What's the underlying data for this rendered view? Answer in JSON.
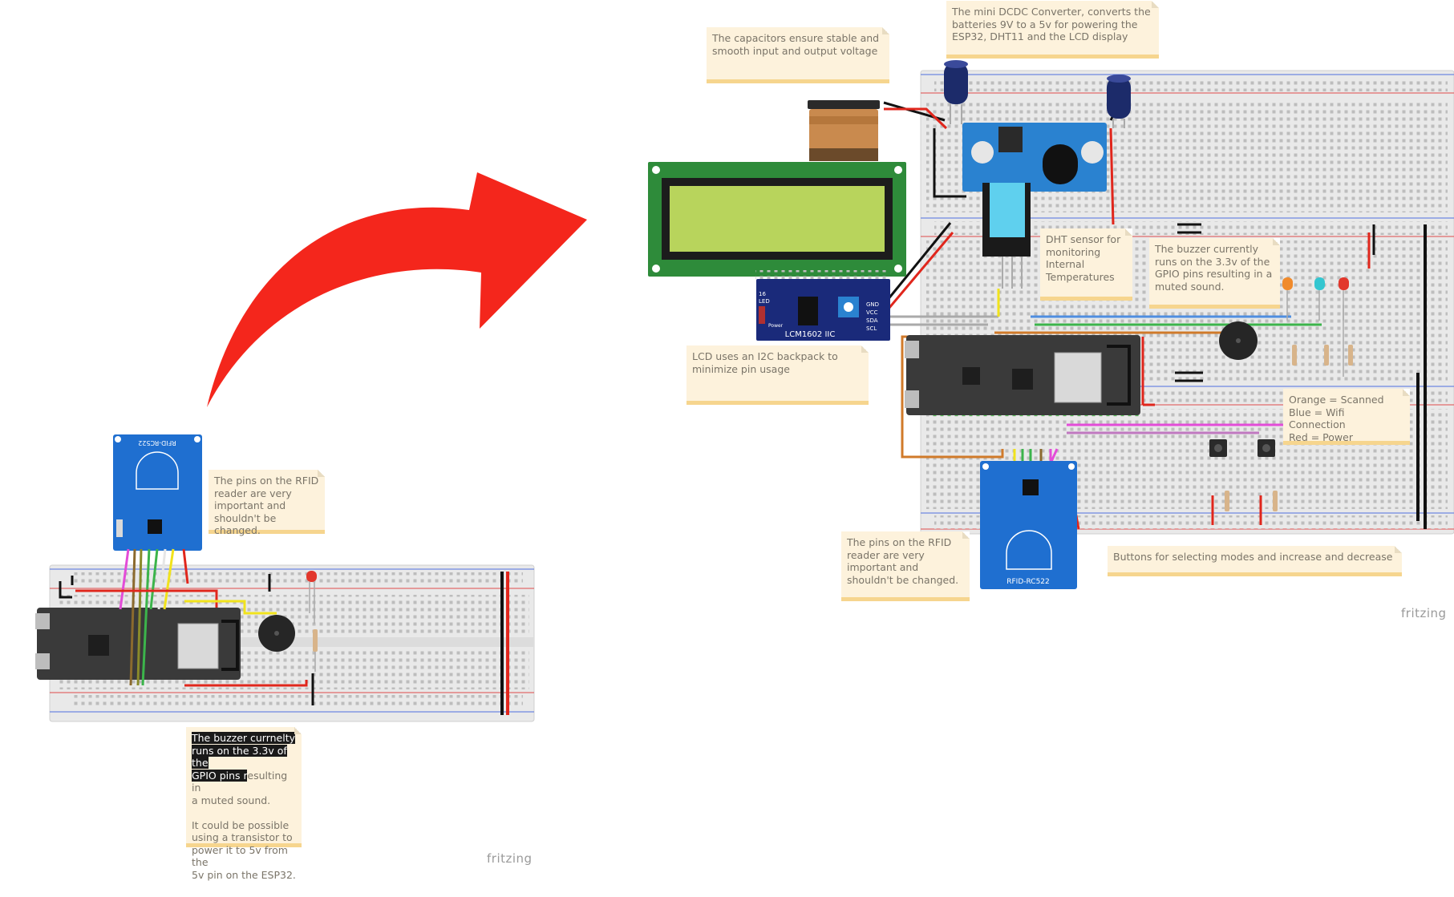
{
  "notes": {
    "left_rfid": "The pins on the RFID\nreader are very\nimportant and\nshouldn't be changed.",
    "left_buzzer_highlight": "The buzzer currnelty\nruns on the 3.3v of the\nGPIO pins r",
    "left_buzzer_rest": "esulting in\na muted sound.\n\nIt could be possible\nusing a transistor to\npower it to 5v from the\n5v pin on the ESP32.",
    "capacitors": "The capacitors ensure stable and\nsmooth input and output voltage",
    "dcdc": "The mini DCDC Converter, converts the\nbatteries 9V to a 5v for powering the\nESP32, DHT11 and the LCD display",
    "dht": "DHT sensor for\nmonitoring\nInternal\nTemperatures",
    "buzzer_right": "The buzzer currently\nruns on the 3.3v of the\nGPIO pins resulting in a\nmuted sound.",
    "lcd": "LCD uses an I2C backpack to\nminimize pin usage",
    "leds": "Orange = Scanned\nBlue = Wifi Connection\nRed = Power",
    "right_rfid": "The pins on the RFID\nreader are very\nimportant and\nshouldn't be changed.",
    "buttons": "Buttons for selecting modes and increase and decrease"
  },
  "labels": {
    "rfid_left": "RFID-RC522",
    "rfid_right": "RFID-RC522",
    "lcd_backpack": "LCM1602 IIC",
    "lcd_pins": [
      "GND",
      "VCC",
      "SDA",
      "SCL"
    ],
    "backpack_led": "LED",
    "backpack_power": "Power",
    "backpack_num": "16",
    "brand_left": "fritzing",
    "brand_right": "fritzing"
  },
  "colors": {
    "arrow": "#f4261c",
    "breadboard": "#e9e9e9",
    "esp32": "#3a3a3a",
    "rfid": "#1f6fd0",
    "lcd_screen": "#b8d45c",
    "lcd_pcb": "#2e8b3a",
    "backpack": "#1a2a7a",
    "dcdc": "#2a82d0",
    "dht": "#5fd0ee",
    "note_bg": "#fdf2dc",
    "note_edge": "#f6d58e"
  },
  "icons": [
    "curved-arrow-icon",
    "battery-9v-icon",
    "capacitor-icon",
    "led-orange-icon",
    "led-blue-icon",
    "led-red-icon",
    "buzzer-icon",
    "push-button-icon",
    "resistor-icon"
  ]
}
